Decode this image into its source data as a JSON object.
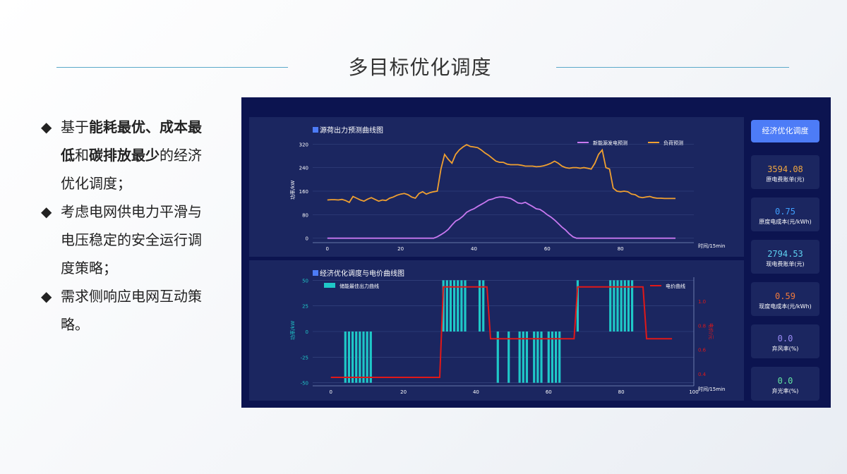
{
  "page": {
    "title": "多目标优化调度"
  },
  "bullets": {
    "b1_pre": "基于",
    "b1_bold1": "能耗最优、成本最低",
    "b1_mid": "和",
    "b1_bold2": "碳排放最少",
    "b1_post": "的经济优化调度；",
    "b2": "考虑电网供电力平滑与电压稳定的安全运行调度策略；",
    "b3": "需求侧响应电网互动策略。"
  },
  "dashboard": {
    "optimize_button": "经济优化调度",
    "cards": [
      {
        "value": "3594.08",
        "label": "原电费账单(元)",
        "color": "#f0a640"
      },
      {
        "value": "0.75",
        "label": "原度电成本(元/kWh)",
        "color": "#3fa0ff"
      },
      {
        "value": "2794.53",
        "label": "现电费账单(元)",
        "color": "#5fd2f0"
      },
      {
        "value": "0.59",
        "label": "现度电成本(元/kWh)",
        "color": "#f07a3c"
      },
      {
        "value": "0.0",
        "label": "弃风率(%)",
        "color": "#9b8cf7"
      },
      {
        "value": "0.0",
        "label": "弃光率(%)",
        "color": "#63e6a4"
      }
    ]
  },
  "chart_data": [
    {
      "type": "line",
      "title": "源荷出力预测曲线图",
      "xlabel": "时间/15min",
      "ylabel": "功率/kW",
      "xlim": [
        -4,
        100
      ],
      "ylim": [
        -15,
        335
      ],
      "xticks": [
        0,
        20,
        40,
        60,
        80
      ],
      "yticks": [
        0,
        80,
        160,
        240,
        320
      ],
      "legend_position": "top-right",
      "grid": true,
      "x": [
        0,
        1,
        2,
        3,
        4,
        5,
        6,
        7,
        8,
        9,
        10,
        11,
        12,
        13,
        14,
        15,
        16,
        17,
        18,
        19,
        20,
        21,
        22,
        23,
        24,
        25,
        26,
        27,
        28,
        29,
        30,
        31,
        32,
        33,
        34,
        35,
        36,
        37,
        38,
        39,
        40,
        41,
        42,
        43,
        44,
        45,
        46,
        47,
        48,
        49,
        50,
        51,
        52,
        53,
        54,
        55,
        56,
        57,
        58,
        59,
        60,
        61,
        62,
        63,
        64,
        65,
        66,
        67,
        68,
        69,
        70,
        71,
        72,
        73,
        74,
        75,
        76,
        77,
        78,
        79,
        80,
        81,
        82,
        83,
        84,
        85,
        86,
        87,
        88,
        89,
        90,
        91,
        92,
        93,
        94,
        95
      ],
      "series": [
        {
          "name": "新能源发电预测",
          "color": "#c878f0",
          "values": [
            0,
            0,
            0,
            0,
            0,
            0,
            0,
            0,
            0,
            0,
            0,
            0,
            0,
            0,
            0,
            0,
            0,
            0,
            0,
            0,
            0,
            0,
            0,
            0,
            0,
            0,
            0,
            0,
            0,
            0,
            5,
            12,
            20,
            30,
            45,
            58,
            65,
            75,
            88,
            95,
            100,
            108,
            115,
            122,
            130,
            133,
            138,
            140,
            140,
            138,
            135,
            128,
            120,
            118,
            122,
            115,
            108,
            100,
            98,
            90,
            80,
            72,
            62,
            50,
            38,
            28,
            15,
            5,
            0,
            0,
            0,
            0,
            0,
            0,
            0,
            0,
            0,
            0,
            0,
            0,
            0,
            0,
            0,
            0,
            0,
            0,
            0,
            0,
            0,
            0,
            0,
            0,
            0,
            0,
            0,
            0
          ]
        },
        {
          "name": "负荷预测",
          "color": "#f0a030",
          "values": [
            130,
            131,
            131,
            130,
            132,
            128,
            122,
            142,
            136,
            130,
            126,
            133,
            138,
            132,
            126,
            130,
            128,
            136,
            140,
            146,
            150,
            152,
            148,
            140,
            136,
            152,
            158,
            150,
            155,
            158,
            160,
            235,
            285,
            268,
            255,
            285,
            300,
            310,
            318,
            312,
            310,
            308,
            300,
            290,
            282,
            272,
            262,
            258,
            258,
            252,
            250,
            250,
            250,
            248,
            245,
            245,
            245,
            243,
            244,
            246,
            250,
            255,
            262,
            255,
            245,
            240,
            238,
            240,
            240,
            238,
            240,
            238,
            235,
            255,
            285,
            300,
            240,
            235,
            170,
            160,
            158,
            160,
            158,
            150,
            148,
            140,
            138,
            140,
            142,
            138,
            136,
            136,
            135,
            135,
            135,
            135
          ]
        }
      ]
    },
    {
      "type": "bar",
      "title": "经济优化调度与电价曲线图",
      "xlabel": "时间/15min",
      "ylabel": "功率/kW",
      "y2label": "电价/元",
      "xlim": [
        -5,
        100
      ],
      "ylim": [
        -53,
        53
      ],
      "y2lim": [
        0.3,
        1.2
      ],
      "xticks": [
        0,
        20,
        40,
        60,
        80,
        100
      ],
      "yticks": [
        -50,
        -25,
        0,
        25,
        50
      ],
      "y2ticks": [
        0.4,
        0.6,
        0.8,
        1.0
      ],
      "legend_position": "top",
      "grid": true,
      "series": [
        {
          "name": "储能最佳出力曲线",
          "type": "bar",
          "color": "#1fc8c8",
          "x": [
            4,
            5,
            6,
            7,
            8,
            9,
            10,
            11,
            31,
            32,
            33,
            34,
            35,
            36,
            37,
            41,
            42,
            46,
            49,
            52,
            53,
            54,
            56,
            57,
            58,
            60,
            61,
            62,
            63,
            68,
            77,
            78,
            79,
            80,
            81,
            82,
            83
          ],
          "values": [
            -50,
            -50,
            -50,
            -50,
            -50,
            -50,
            -50,
            -50,
            50,
            50,
            50,
            50,
            50,
            50,
            50,
            50,
            50,
            -50,
            -50,
            -50,
            -50,
            -50,
            -50,
            -50,
            -50,
            -50,
            -50,
            -50,
            -50,
            50,
            50,
            50,
            50,
            50,
            50,
            50,
            50
          ]
        },
        {
          "name": "电价曲线",
          "type": "line",
          "axis": "y2",
          "color": "#e01818",
          "x": [
            0,
            30,
            31,
            43,
            44,
            67,
            68,
            86,
            87,
            94
          ],
          "values": [
            0.37,
            0.37,
            1.12,
            1.12,
            0.69,
            0.69,
            1.12,
            1.12,
            0.69,
            0.69
          ]
        }
      ]
    }
  ]
}
